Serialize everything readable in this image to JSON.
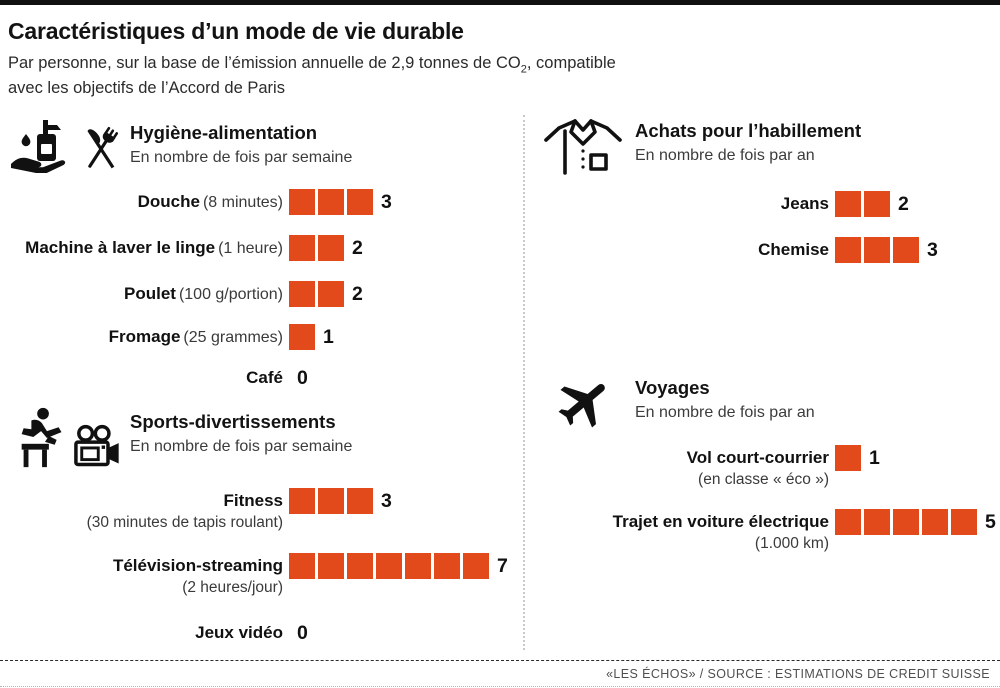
{
  "page": {
    "title": "Caractéristiques d’un mode de vie durable",
    "subtitle": {
      "line1_prefix": "Par personne, sur la base de l’émission annuelle de 2,9 tonnes de CO",
      "line1_subscript": "2",
      "line1_suffix": ", compatible",
      "line2": "avec les objectifs de l’Accord de Paris"
    },
    "footer_credit": "«LES ÉCHOS» / SOURCE : ESTIMATIONS DE CREDIT SUISSE",
    "accent_color": "#e2491b"
  },
  "chart_data": [
    {
      "type": "bar",
      "subtype": "pictogram-unit-bar",
      "title": "Hygiène-alimentation",
      "subtitle": "En nombre de fois par semaine",
      "icons": [
        "hand-soap-icon",
        "fork-knife-icon"
      ],
      "categories": [
        "Douche",
        "Machine à laver le linge",
        "Poulet",
        "Fromage",
        "Café"
      ],
      "values": [
        3,
        2,
        2,
        1,
        0
      ],
      "rows": [
        {
          "label": "Douche",
          "detail": "(8 minutes)",
          "value": 3
        },
        {
          "label": "Machine à laver le linge",
          "detail": "(1 heure)",
          "value": 2
        },
        {
          "label": "Poulet",
          "detail": "(100 g/portion)",
          "value": 2
        },
        {
          "label": "Fromage",
          "detail": "(25 grammes)",
          "value": 1
        },
        {
          "label": "Café",
          "detail": "",
          "value": 0
        }
      ]
    },
    {
      "type": "bar",
      "subtype": "pictogram-unit-bar",
      "title": "Sports-divertissements",
      "subtitle": "En nombre de fois par semaine",
      "icons": [
        "hurdler-icon",
        "movie-camera-icon"
      ],
      "categories": [
        "Fitness",
        "Télévision-streaming",
        "Jeux vidéo"
      ],
      "values": [
        3,
        7,
        0
      ],
      "rows": [
        {
          "label": "Fitness",
          "detail_below": "(30 minutes de tapis roulant)",
          "value": 3
        },
        {
          "label": "Télévision-streaming",
          "detail_below": "(2 heures/jour)",
          "value": 7
        },
        {
          "label": "Jeux vidéo",
          "detail_below": "",
          "value": 0
        }
      ]
    },
    {
      "type": "bar",
      "subtype": "pictogram-unit-bar",
      "title": "Achats pour l’habillement",
      "subtitle": "En nombre de fois par an",
      "icons": [
        "shirt-icon"
      ],
      "categories": [
        "Jeans",
        "Chemise"
      ],
      "values": [
        2,
        3
      ],
      "rows": [
        {
          "label": "Jeans",
          "detail": "",
          "value": 2
        },
        {
          "label": "Chemise",
          "detail": "",
          "value": 3
        }
      ]
    },
    {
      "type": "bar",
      "subtype": "pictogram-unit-bar",
      "title": "Voyages",
      "subtitle": "En nombre de fois par an",
      "icons": [
        "plane-icon"
      ],
      "categories": [
        "Vol court-courrier",
        "Trajet en voiture électrique"
      ],
      "values": [
        1,
        5
      ],
      "rows": [
        {
          "label": "Vol court-courrier",
          "detail_below": "(en classe « éco »)",
          "value": 1
        },
        {
          "label": "Trajet en voiture électrique",
          "detail_below": "(1.000 km)",
          "value": 5
        }
      ]
    }
  ]
}
